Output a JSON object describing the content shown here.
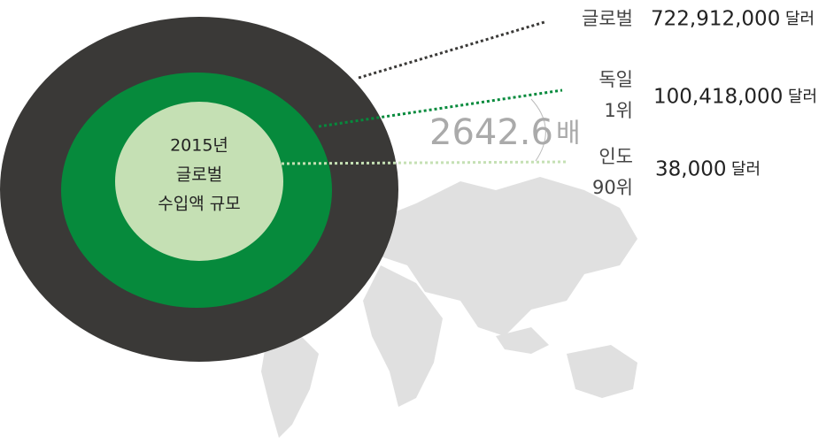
{
  "center": {
    "lines": [
      "2015년",
      "글로벌",
      "수입액 규모"
    ]
  },
  "items": [
    {
      "name": "글로벌",
      "amount": "722,912,000",
      "unit": "달러"
    },
    {
      "name": "독일",
      "rank": "1위",
      "amount": "100,418,000",
      "unit": "달러"
    },
    {
      "name": "인도",
      "rank": "90위",
      "amount": "38,000",
      "unit": "달러"
    }
  ],
  "ratio": {
    "value": "2642.6",
    "unit": "배"
  }
}
